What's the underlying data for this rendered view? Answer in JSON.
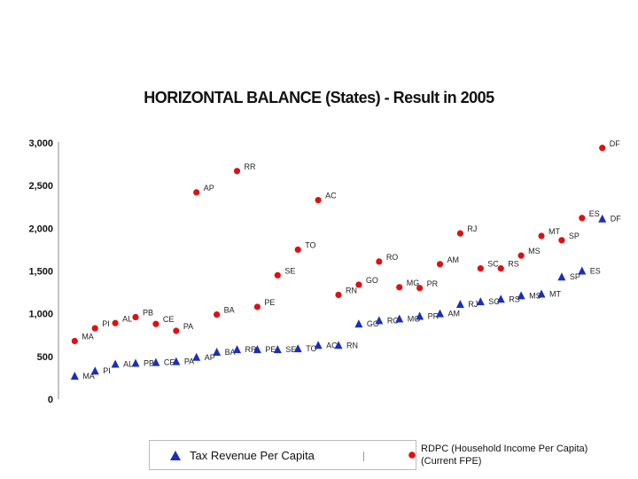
{
  "chart_data": {
    "type": "scatter",
    "title": "HORIZONTAL BALANCE (States) - Result in 2005",
    "xlabel": "",
    "ylabel": "",
    "ylim": [
      0,
      3000
    ],
    "yticks": [
      "0",
      "500",
      "1,000",
      "1,500",
      "2,000",
      "2,500",
      "3,000"
    ],
    "grid": false,
    "legend_position": "bottom",
    "series": [
      {
        "name": "Tax Revenue Per Capita",
        "marker": "triangle",
        "color": "#1a2fb8",
        "points": [
          {
            "label": "MA",
            "x": 1,
            "y": 270
          },
          {
            "label": "PI",
            "x": 2,
            "y": 330
          },
          {
            "label": "AL",
            "x": 3,
            "y": 410
          },
          {
            "label": "PB",
            "x": 4,
            "y": 420
          },
          {
            "label": "CE",
            "x": 5,
            "y": 430
          },
          {
            "label": "PA",
            "x": 6,
            "y": 440
          },
          {
            "label": "AP",
            "x": 7,
            "y": 490
          },
          {
            "label": "BA",
            "x": 8,
            "y": 550
          },
          {
            "label": "RR",
            "x": 9,
            "y": 580
          },
          {
            "label": "PE",
            "x": 10,
            "y": 580
          },
          {
            "label": "SE",
            "x": 11,
            "y": 580
          },
          {
            "label": "TO",
            "x": 12,
            "y": 590
          },
          {
            "label": "AC",
            "x": 13,
            "y": 630
          },
          {
            "label": "RN",
            "x": 14,
            "y": 630
          },
          {
            "label": "GO",
            "x": 15,
            "y": 880
          },
          {
            "label": "RO",
            "x": 16,
            "y": 920
          },
          {
            "label": "MG",
            "x": 17,
            "y": 940
          },
          {
            "label": "PR",
            "x": 18,
            "y": 970
          },
          {
            "label": "AM",
            "x": 19,
            "y": 1000
          },
          {
            "label": "RJ",
            "x": 20,
            "y": 1110
          },
          {
            "label": "SC",
            "x": 21,
            "y": 1140
          },
          {
            "label": "RS",
            "x": 22,
            "y": 1170
          },
          {
            "label": "MS",
            "x": 23,
            "y": 1210
          },
          {
            "label": "MT",
            "x": 24,
            "y": 1230
          },
          {
            "label": "SP",
            "x": 25,
            "y": 1430
          },
          {
            "label": "ES",
            "x": 26,
            "y": 1500
          },
          {
            "label": "DF",
            "x": 27,
            "y": 2110
          }
        ]
      },
      {
        "name": "RDPC (Household Income Per Capita) (Current FPE)",
        "marker": "circle",
        "color": "#dd1111",
        "points": [
          {
            "label": "MA",
            "x": 1,
            "y": 680
          },
          {
            "label": "PI",
            "x": 2,
            "y": 830
          },
          {
            "label": "AL",
            "x": 3,
            "y": 890
          },
          {
            "label": "PB",
            "x": 4,
            "y": 960
          },
          {
            "label": "CE",
            "x": 5,
            "y": 880
          },
          {
            "label": "PA",
            "x": 6,
            "y": 800
          },
          {
            "label": "AP",
            "x": 7,
            "y": 2420
          },
          {
            "label": "BA",
            "x": 8,
            "y": 990
          },
          {
            "label": "RR",
            "x": 9,
            "y": 2670
          },
          {
            "label": "PE",
            "x": 10,
            "y": 1080
          },
          {
            "label": "SE",
            "x": 11,
            "y": 1450
          },
          {
            "label": "TO",
            "x": 12,
            "y": 1750
          },
          {
            "label": "AC",
            "x": 13,
            "y": 2330
          },
          {
            "label": "RN",
            "x": 14,
            "y": 1220
          },
          {
            "label": "GO",
            "x": 15,
            "y": 1340
          },
          {
            "label": "RO",
            "x": 16,
            "y": 1610
          },
          {
            "label": "MG",
            "x": 17,
            "y": 1310
          },
          {
            "label": "PR",
            "x": 18,
            "y": 1300
          },
          {
            "label": "AM",
            "x": 19,
            "y": 1580
          },
          {
            "label": "RJ",
            "x": 20,
            "y": 1940
          },
          {
            "label": "SC",
            "x": 21,
            "y": 1530
          },
          {
            "label": "RS",
            "x": 22,
            "y": 1530
          },
          {
            "label": "MS",
            "x": 23,
            "y": 1680
          },
          {
            "label": "MT",
            "x": 24,
            "y": 1910
          },
          {
            "label": "SP",
            "x": 25,
            "y": 1860
          },
          {
            "label": "ES",
            "x": 26,
            "y": 2120
          },
          {
            "label": "DF",
            "x": 27,
            "y": 2940
          }
        ]
      }
    ]
  },
  "legend": {
    "tax_label": "Tax Revenue Per Capita",
    "rdpc_label_line1": "RDPC (Household Income Per Capita)",
    "rdpc_label_line2": "(Current FPE)"
  }
}
